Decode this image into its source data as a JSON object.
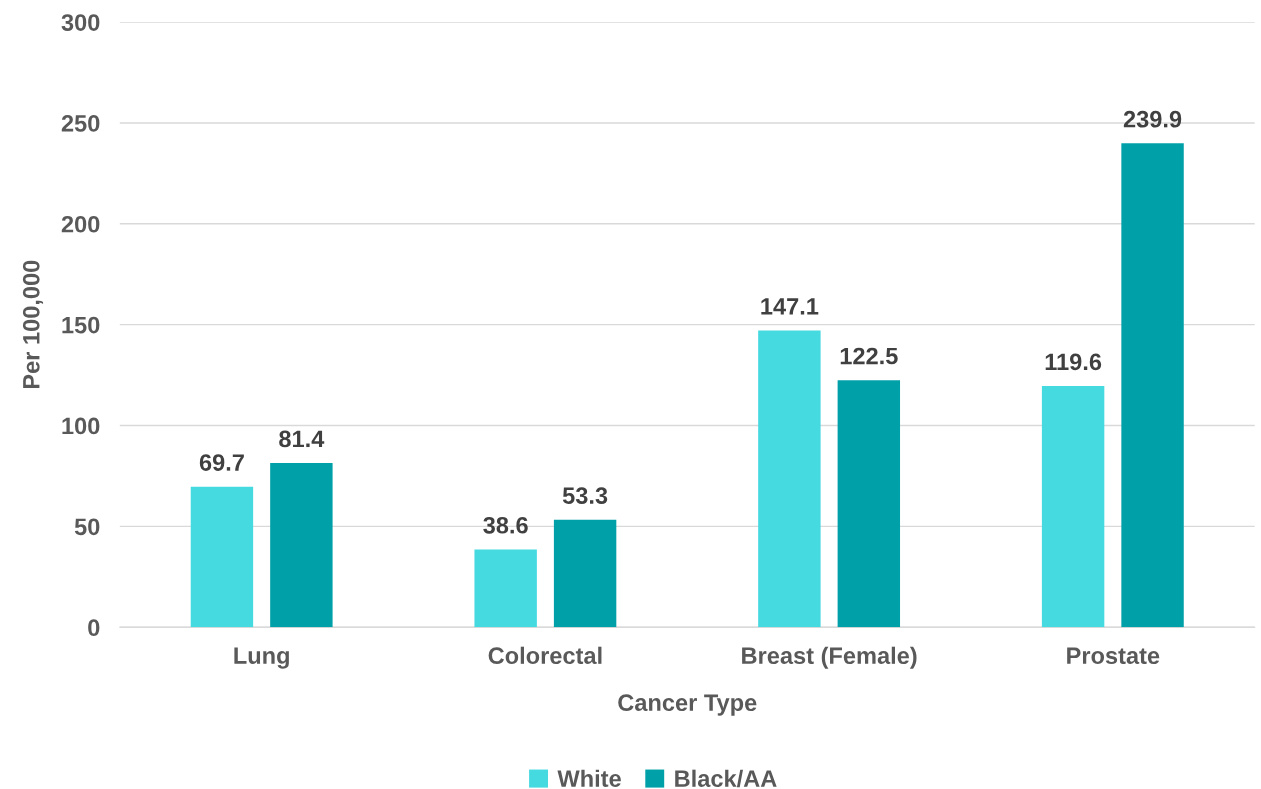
{
  "chart_data": {
    "type": "bar",
    "xlabel": "Cancer Type",
    "ylabel": "Per 100,000",
    "categories": [
      "Lung",
      "Colorectal",
      "Breast (Female)",
      "Prostate"
    ],
    "series": [
      {
        "name": "White",
        "color": "#45d9e0",
        "values": [
          69.7,
          38.6,
          147.1,
          119.6
        ]
      },
      {
        "name": "Black/AA",
        "color": "#00a0a8",
        "values": [
          81.4,
          53.3,
          122.5,
          239.9
        ]
      }
    ],
    "ylim": [
      0,
      300
    ],
    "yticks": [
      0,
      50,
      100,
      150,
      200,
      250,
      300
    ],
    "grid": "y",
    "legend": "bottom",
    "data_labels": true
  }
}
